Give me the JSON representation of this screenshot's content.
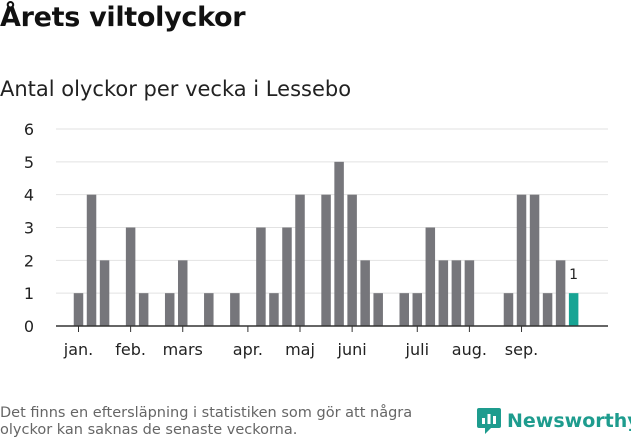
{
  "header": {
    "title": "Årets viltolyckor",
    "subtitle": "Antal olyckor per vecka i Lessebo"
  },
  "footnote": "Det finns en eftersläpning i statistiken som gör att några olyckor kan saknas de senaste veckorna.",
  "brand": {
    "name": "Newsworthy",
    "icon": "newsworthy-logo-icon"
  },
  "colors": {
    "bar": "#76767b",
    "highlight": "#17a494",
    "grid": "#e2e2e2",
    "axis": "#333333",
    "brand": "#1e9c8e"
  },
  "chart_data": {
    "type": "bar",
    "title": "Antal olyckor per vecka i Lessebo",
    "xlabel": "",
    "ylabel": "",
    "ylim": [
      0,
      6
    ],
    "yticks": [
      "0",
      "1",
      "2",
      "3",
      "4",
      "5",
      "6"
    ],
    "grid": true,
    "x_labels": [
      {
        "label": "jan.",
        "week": 1
      },
      {
        "label": "feb.",
        "week": 5
      },
      {
        "label": "mars",
        "week": 9
      },
      {
        "label": "apr.",
        "week": 14
      },
      {
        "label": "maj",
        "week": 18
      },
      {
        "label": "juni",
        "week": 22
      },
      {
        "label": "juli",
        "week": 27
      },
      {
        "label": "aug.",
        "week": 31
      },
      {
        "label": "sep.",
        "week": 35
      }
    ],
    "weeks": [
      1,
      2,
      3,
      4,
      5,
      6,
      7,
      8,
      9,
      10,
      11,
      12,
      13,
      14,
      15,
      16,
      17,
      18,
      19,
      20,
      21,
      22,
      23,
      24,
      25,
      26,
      27,
      28,
      29,
      30,
      31,
      32,
      33,
      34,
      35,
      36,
      37,
      38,
      39
    ],
    "values": [
      1,
      4,
      2,
      0,
      3,
      1,
      0,
      1,
      2,
      0,
      1,
      0,
      1,
      0,
      3,
      1,
      3,
      4,
      0,
      4,
      5,
      4,
      2,
      1,
      0,
      1,
      1,
      3,
      2,
      2,
      2,
      0,
      0,
      1,
      4,
      4,
      1,
      2,
      1
    ],
    "highlight_index": 38,
    "highlight_label": "1"
  }
}
